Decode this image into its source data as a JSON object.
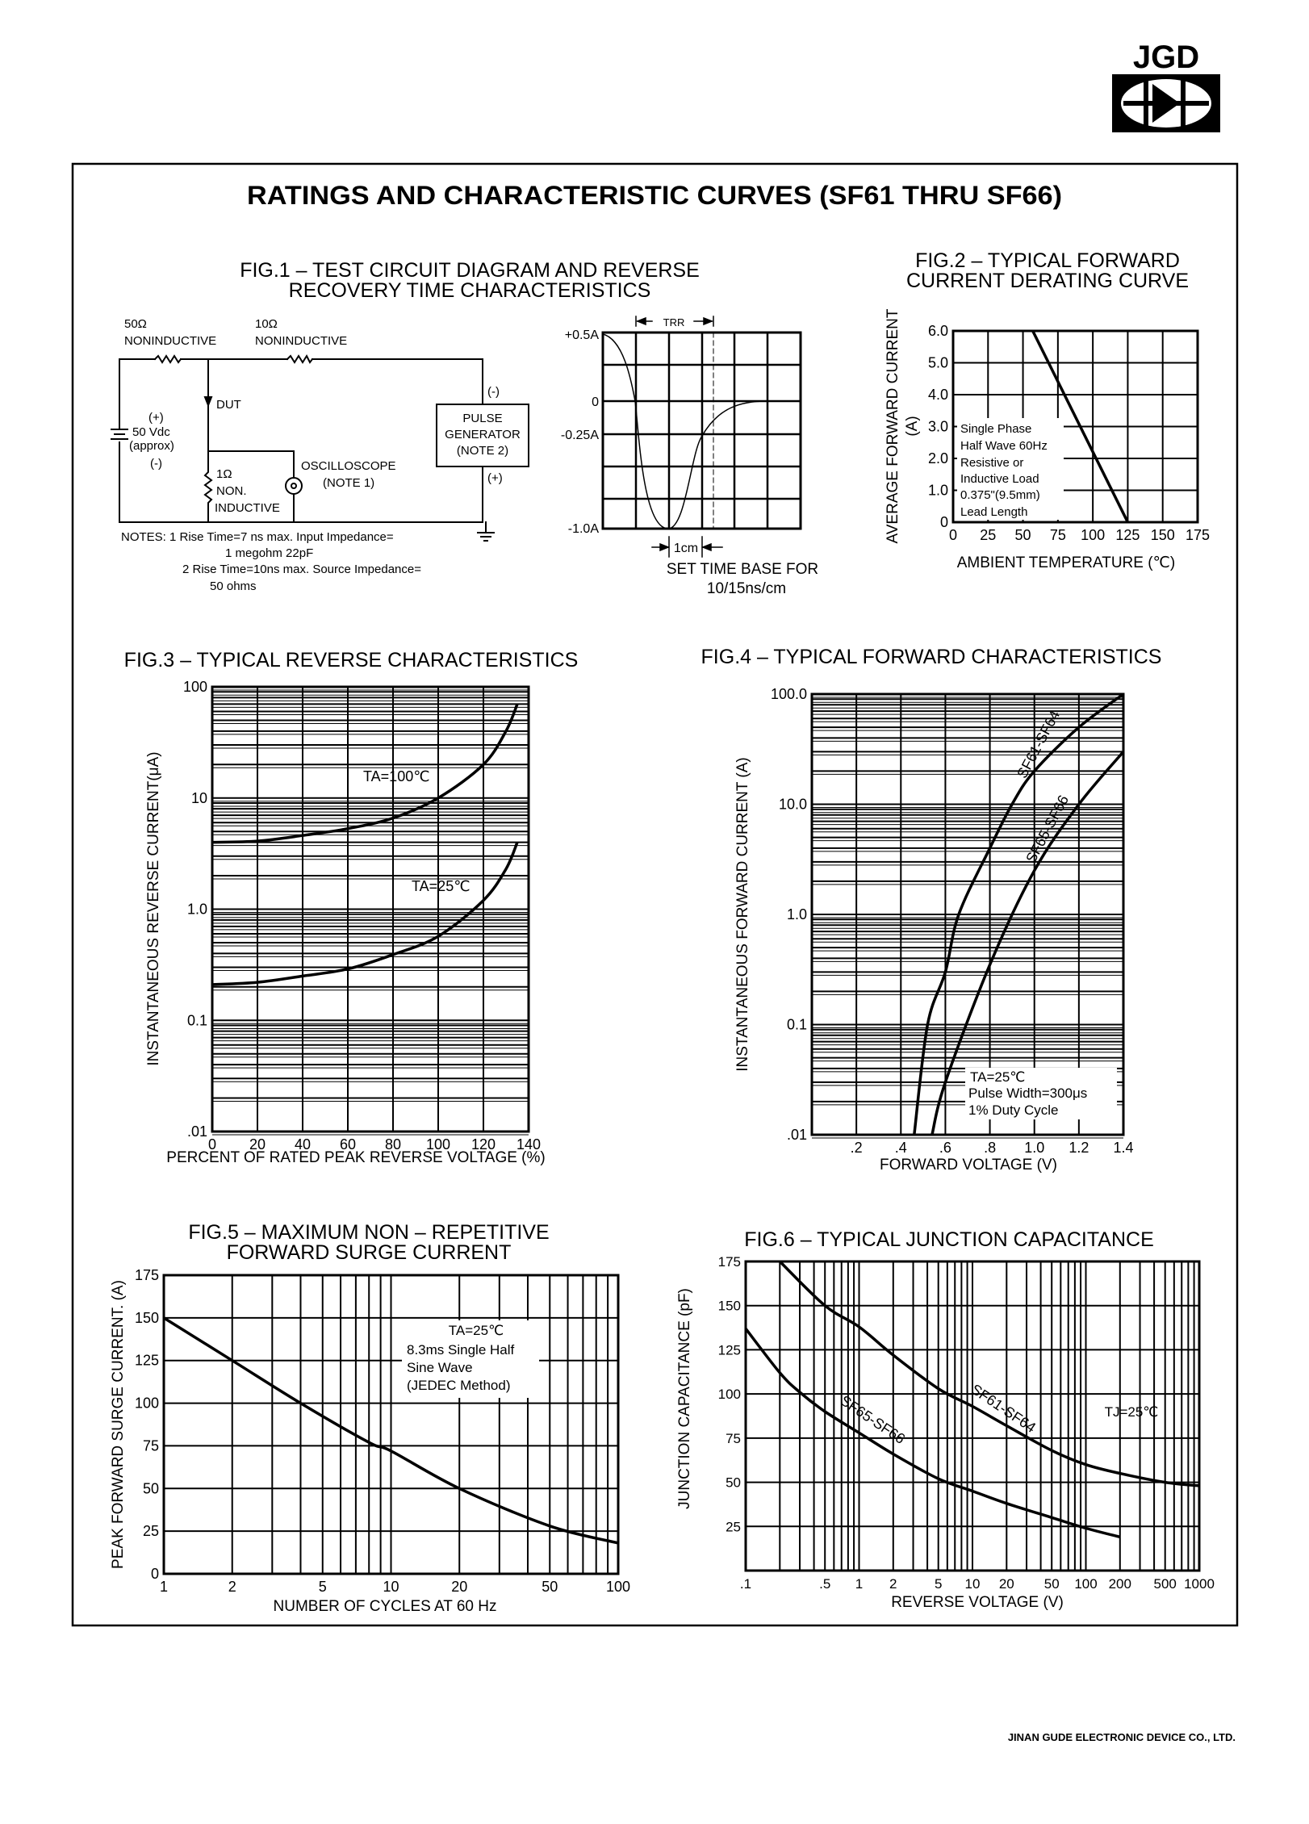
{
  "header": {
    "logo_text": "JGD"
  },
  "page": {
    "title": "RATINGS AND CHARACTERISTIC CURVES (SF61 THRU SF66)",
    "footer": "JINAN GUDE ELECTRONIC DEVICE CO., LTD."
  },
  "fig1": {
    "title": [
      "FIG.1 – TEST CIRCUIT DIAGRAM AND REVERSE",
      "RECOVERY TIME CHARACTERISTICS"
    ],
    "circuit": {
      "r1_value": "50Ω",
      "r1_type": "NONINDUCTIVE",
      "r2_value": "10Ω",
      "r2_type": "NONINDUCTIVE",
      "dut": "DUT",
      "supply_plus": "(+)",
      "supply_voltage": "50 Vdc",
      "supply_approx": "(approx)",
      "supply_minus": "(-)",
      "r3_value": "1Ω",
      "r3_type_1": "NON.",
      "r3_type_2": "INDUCTIVE",
      "scope": "OSCILLOSCOPE",
      "scope_note": "(NOTE 1)",
      "gen_line1": "PULSE",
      "gen_line2": "GENERATOR",
      "gen_note": "(NOTE 2)",
      "gen_minus": "(-)",
      "gen_plus": "(+)"
    },
    "notes": [
      "NOTES: 1 Rise Time=7 ns max. Input Impedance=",
      "1 megohm 22pF",
      "2 Rise Time=10ns max. Source Impedance=",
      "50 ohms"
    ],
    "scope": {
      "levels": [
        "+0.5A",
        "0",
        "-0.25A",
        "-1.0A"
      ],
      "trr": "TRR",
      "division": "1cm",
      "timebase": [
        "SET TIME BASE FOR",
        "10/15ns/cm"
      ]
    }
  },
  "chart_data": [
    {
      "type": "line",
      "title": [
        "FIG.2 – TYPICAL FORWARD",
        "CURRENT DERATING CURVE"
      ],
      "xlabel": "AMBIENT TEMPERATURE (℃)",
      "ylabel": [
        "AVERAGE FORWARD CURRENT",
        "(A)"
      ],
      "xscale": "linear",
      "yscale": "linear",
      "xlim": [
        0,
        175
      ],
      "ylim": [
        0,
        6
      ],
      "grid": true,
      "xticks": [
        {
          "v": 0,
          "label": "0"
        },
        {
          "v": 25,
          "label": "25"
        },
        {
          "v": 50,
          "label": "50"
        },
        {
          "v": 75,
          "label": "75"
        },
        {
          "v": 100,
          "label": "100"
        },
        {
          "v": 125,
          "label": "125"
        },
        {
          "v": 150,
          "label": "150"
        },
        {
          "v": 175,
          "label": "175"
        }
      ],
      "yticks": [
        {
          "v": 0,
          "label": "0"
        },
        {
          "v": 1,
          "label": "1.0"
        },
        {
          "v": 2,
          "label": "2.0"
        },
        {
          "v": 3,
          "label": "3.0"
        },
        {
          "v": 4,
          "label": "4.0"
        },
        {
          "v": 5,
          "label": "5.0"
        },
        {
          "v": 6,
          "label": "6.0"
        }
      ],
      "series": [
        {
          "points": [
            [
              57,
              6.0
            ],
            [
              125,
              0
            ]
          ]
        }
      ],
      "annotations": [
        "Single Phase",
        "Half Wave 60Hz",
        "Resistive or",
        "Inductive Load",
        "0.375\"(9.5mm)",
        "Lead Length"
      ]
    },
    {
      "type": "line",
      "title": [
        "FIG.3 – TYPICAL REVERSE CHARACTERISTICS"
      ],
      "xlabel": "PERCENT OF RATED  PEAK REVERSE VOLTAGE (%)",
      "ylabel": [
        "INSTANTANEOUS REVERSE CURRENT(μA)"
      ],
      "xscale": "linear",
      "yscale": "log",
      "xlim": [
        0,
        140
      ],
      "ylim": [
        0.01,
        100
      ],
      "grid": true,
      "xticks": [
        {
          "v": 0,
          "label": "0"
        },
        {
          "v": 20,
          "label": "20"
        },
        {
          "v": 40,
          "label": "40"
        },
        {
          "v": 60,
          "label": "60"
        },
        {
          "v": 80,
          "label": "80"
        },
        {
          "v": 100,
          "label": "100"
        },
        {
          "v": 120,
          "label": "120"
        },
        {
          "v": 140,
          "label": "140"
        }
      ],
      "yticks": [
        {
          "v": 0.01,
          "label": ".01"
        },
        {
          "v": 0.1,
          "label": "0.1"
        },
        {
          "v": 1,
          "label": "1.0"
        },
        {
          "v": 10,
          "label": "10"
        },
        {
          "v": 100,
          "label": "100"
        }
      ],
      "series": [
        {
          "name": "TA=100℃",
          "points": [
            [
              0,
              4.0
            ],
            [
              20,
              4.1
            ],
            [
              40,
              4.6
            ],
            [
              60,
              5.3
            ],
            [
              80,
              6.6
            ],
            [
              100,
              10
            ],
            [
              120,
              20
            ],
            [
              130,
              40
            ],
            [
              135,
              70
            ]
          ]
        },
        {
          "name": "TA=25℃",
          "points": [
            [
              0,
              0.21
            ],
            [
              20,
              0.22
            ],
            [
              40,
              0.25
            ],
            [
              60,
              0.29
            ],
            [
              80,
              0.39
            ],
            [
              100,
              0.57
            ],
            [
              120,
              1.2
            ],
            [
              130,
              2.3
            ],
            [
              135,
              4.0
            ]
          ]
        }
      ],
      "annotations": []
    },
    {
      "type": "line",
      "title": [
        "FIG.4 – TYPICAL FORWARD CHARACTERISTICS"
      ],
      "xlabel": "FORWARD VOLTAGE (V)",
      "ylabel": [
        "INSTANTANEOUS FORWARD CURRENT (A)"
      ],
      "xscale": "linear",
      "yscale": "log",
      "xlim": [
        0,
        1.4
      ],
      "ylim": [
        0.01,
        100
      ],
      "grid": true,
      "xticks": [
        {
          "v": 0.2,
          "label": ".2"
        },
        {
          "v": 0.4,
          "label": ".4"
        },
        {
          "v": 0.6,
          "label": ".6"
        },
        {
          "v": 0.8,
          "label": ".8"
        },
        {
          "v": 1.0,
          "label": "1.0"
        },
        {
          "v": 1.2,
          "label": "1.2"
        },
        {
          "v": 1.4,
          "label": "1.4"
        }
      ],
      "yticks": [
        {
          "v": 0.01,
          "label": ".01"
        },
        {
          "v": 0.1,
          "label": "0.1"
        },
        {
          "v": 1,
          "label": "1.0"
        },
        {
          "v": 10,
          "label": "10.0"
        },
        {
          "v": 100,
          "label": "100.0"
        }
      ],
      "series": [
        {
          "name": "SF61-SF64",
          "points": [
            [
              0.46,
              0.01
            ],
            [
              0.52,
              0.1
            ],
            [
              0.6,
              0.3
            ],
            [
              0.66,
              1.0
            ],
            [
              0.8,
              4.0
            ],
            [
              0.9,
              10
            ],
            [
              1.0,
              20
            ],
            [
              1.2,
              50
            ],
            [
              1.4,
              100
            ]
          ]
        },
        {
          "name": "SF65-SF66",
          "points": [
            [
              0.54,
              0.01
            ],
            [
              0.6,
              0.03
            ],
            [
              0.8,
              0.35
            ],
            [
              1.0,
              2.5
            ],
            [
              1.2,
              10
            ],
            [
              1.4,
              30
            ]
          ]
        }
      ],
      "annotations": [
        "TA=25℃",
        "Pulse Width=300μs",
        "1% Duty Cycle"
      ]
    },
    {
      "type": "line",
      "title": [
        "FIG.5 – MAXIMUM NON – REPETITIVE",
        "FORWARD SURGE CURRENT"
      ],
      "xlabel": "NUMBER OF CYCLES AT 60 Hz",
      "ylabel": [
        "PEAK FORWARD SURGE CURRENT. (A)"
      ],
      "xscale": "log",
      "yscale": "linear",
      "xlim": [
        1,
        100
      ],
      "ylim": [
        0,
        175
      ],
      "grid": true,
      "xticks": [
        {
          "v": 1,
          "label": "1"
        },
        {
          "v": 2,
          "label": "2"
        },
        {
          "v": 5,
          "label": "5"
        },
        {
          "v": 10,
          "label": "10"
        },
        {
          "v": 20,
          "label": "20"
        },
        {
          "v": 50,
          "label": "50"
        },
        {
          "v": 100,
          "label": "100"
        }
      ],
      "yticks": [
        {
          "v": 0,
          "label": "0"
        },
        {
          "v": 25,
          "label": "25"
        },
        {
          "v": 50,
          "label": "50"
        },
        {
          "v": 75,
          "label": "75"
        },
        {
          "v": 100,
          "label": "100"
        },
        {
          "v": 125,
          "label": "125"
        },
        {
          "v": 150,
          "label": "150"
        },
        {
          "v": 175,
          "label": "175"
        }
      ],
      "series": [
        {
          "points": [
            [
              1,
              150
            ],
            [
              2,
              125
            ],
            [
              4,
              100
            ],
            [
              8,
              77
            ],
            [
              10,
              72
            ],
            [
              20,
              50
            ],
            [
              50,
              28
            ],
            [
              100,
              18
            ]
          ]
        }
      ],
      "annotations": [
        "TA=25℃",
        "8.3ms Single Half",
        "Sine Wave",
        "(JEDEC Method)"
      ]
    },
    {
      "type": "line",
      "title": [
        "FIG.6 – TYPICAL JUNCTION CAPACITANCE"
      ],
      "xlabel": "REVERSE VOLTAGE (V)",
      "ylabel": [
        "JUNCTION CAPACITANCE (pF)"
      ],
      "xscale": "log",
      "yscale": "linear",
      "xlim": [
        0.1,
        1000
      ],
      "ylim": [
        0,
        175
      ],
      "grid": true,
      "xticks": [
        {
          "v": 0.1,
          "label": ".1"
        },
        {
          "v": 0.5,
          "label": ".5"
        },
        {
          "v": 1,
          "label": "1"
        },
        {
          "v": 2,
          "label": "2"
        },
        {
          "v": 5,
          "label": "5"
        },
        {
          "v": 10,
          "label": "10"
        },
        {
          "v": 20,
          "label": "20"
        },
        {
          "v": 50,
          "label": "50"
        },
        {
          "v": 100,
          "label": "100"
        },
        {
          "v": 200,
          "label": "200"
        },
        {
          "v": 500,
          "label": "500"
        },
        {
          "v": 1000,
          "label": "1000"
        }
      ],
      "yticks": [
        {
          "v": 25,
          "label": "25"
        },
        {
          "v": 50,
          "label": "50"
        },
        {
          "v": 75,
          "label": "75"
        },
        {
          "v": 100,
          "label": "100"
        },
        {
          "v": 125,
          "label": "125"
        },
        {
          "v": 150,
          "label": "150"
        },
        {
          "v": 175,
          "label": "175"
        }
      ],
      "series": [
        {
          "name": "SF61-SF64",
          "points": [
            [
              0.2,
              175
            ],
            [
              0.5,
              150
            ],
            [
              1,
              138
            ],
            [
              2,
              122
            ],
            [
              5,
              103
            ],
            [
              10,
              93
            ],
            [
              20,
              82
            ],
            [
              50,
              68
            ],
            [
              100,
              60
            ],
            [
              200,
              55
            ],
            [
              500,
              50
            ],
            [
              1000,
              48
            ]
          ]
        },
        {
          "name": "SF65-SF66",
          "points": [
            [
              0.1,
              137
            ],
            [
              0.2,
              112
            ],
            [
              0.3,
              101
            ],
            [
              0.5,
              90
            ],
            [
              1,
              78
            ],
            [
              2,
              66
            ],
            [
              5,
              52
            ],
            [
              10,
              45
            ],
            [
              20,
              38
            ],
            [
              50,
              30
            ],
            [
              100,
              24
            ],
            [
              200,
              19
            ]
          ]
        }
      ],
      "annotations": [
        "TJ=25℃"
      ]
    }
  ]
}
